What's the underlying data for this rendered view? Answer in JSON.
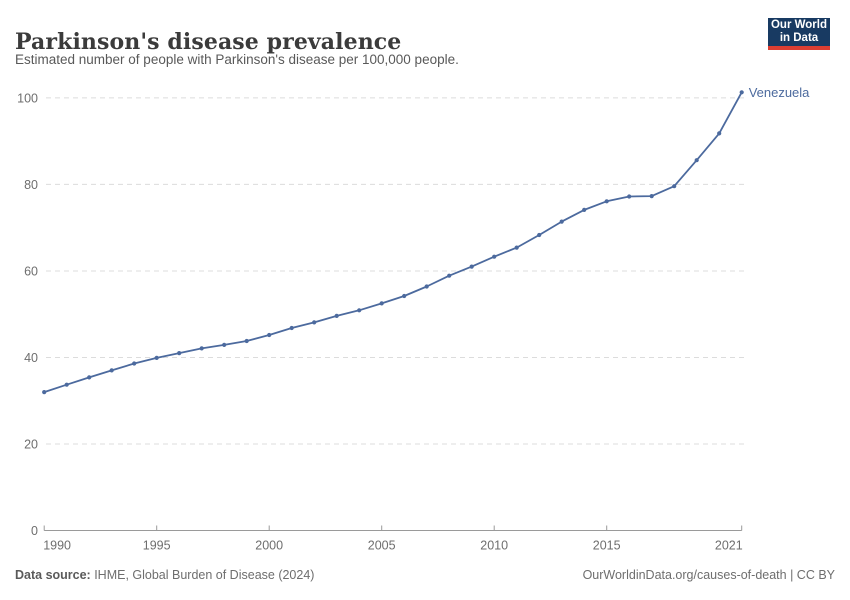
{
  "header": {
    "title": "Parkinson's disease prevalence",
    "subtitle": "Estimated number of people with Parkinson's disease per 100,000 people.",
    "logo": {
      "line1": "Our World",
      "line2": "in Data"
    }
  },
  "chart_data": {
    "type": "line",
    "title": "Parkinson's disease prevalence",
    "x": [
      1990,
      1991,
      1992,
      1993,
      1994,
      1995,
      1996,
      1997,
      1998,
      1999,
      2000,
      2001,
      2002,
      2003,
      2004,
      2005,
      2006,
      2007,
      2008,
      2009,
      2010,
      2011,
      2012,
      2013,
      2014,
      2015,
      2016,
      2017,
      2018,
      2019,
      2020,
      2021
    ],
    "series": [
      {
        "name": "Venezuela",
        "values": [
          32.0,
          33.7,
          35.4,
          37.0,
          38.6,
          39.9,
          41.0,
          42.1,
          42.9,
          43.8,
          45.2,
          46.8,
          48.1,
          49.6,
          50.9,
          52.5,
          54.2,
          56.4,
          58.9,
          61.0,
          63.3,
          65.4,
          68.3,
          71.4,
          74.1,
          76.1,
          77.2,
          77.3,
          79.6,
          85.6,
          91.8,
          101.3
        ]
      }
    ],
    "xlabel": "",
    "ylabel": "",
    "xlim": [
      1990,
      2021
    ],
    "ylim": [
      0,
      100
    ],
    "x_ticks": [
      1990,
      1995,
      2000,
      2005,
      2010,
      2015,
      2021
    ],
    "y_ticks": [
      0,
      20,
      40,
      60,
      80,
      100
    ],
    "grid": "horizontal-dashed",
    "legend_position": "end-of-line-label",
    "line_color": "#4c6a9e",
    "entity_label": "Venezuela"
  },
  "colors": {
    "accent_line": "#4c6a9e",
    "logo_bg": "#183a62",
    "logo_red": "#dc3e32",
    "grid": "#dcdcdc",
    "axis": "#9a9a9a",
    "tick_text": "#6e6e6e"
  },
  "footer": {
    "source_label": "Data source:",
    "source_value": " IHME, Global Burden of Disease (2024)",
    "attribution": "OurWorldinData.org/causes-of-death | CC BY"
  }
}
